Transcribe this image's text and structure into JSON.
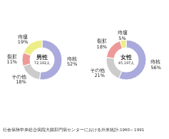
{
  "chart_data": [
    {
      "type": "pie",
      "title": "男性",
      "subtitle": "72,182人",
      "categories": [
        "痔核",
        "その他",
        "裂肛",
        "痔瘻"
      ],
      "values": [
        52,
        18,
        11,
        19
      ],
      "value_labels": [
        "52%",
        "18%",
        "11%",
        "19%"
      ],
      "colors": [
        "#aaaadd",
        "#cccccc",
        "#ee9999",
        "#eeee88"
      ],
      "data_labels": true
    },
    {
      "type": "pie",
      "title": "女性",
      "subtitle": "45,197人",
      "categories": [
        "痔核",
        "その他",
        "裂肛",
        "痔瘻"
      ],
      "values": [
        56,
        21,
        18,
        5
      ],
      "value_labels": [
        "56%",
        "21%",
        "18%",
        "5%"
      ],
      "colors": [
        "#aaaadd",
        "#cccccc",
        "#ee9999",
        "#eeee88"
      ],
      "data_labels": true
    }
  ],
  "caption": "社会保険中央総合病院大腸肛門病センターにおける外来統計:1960～1991"
}
